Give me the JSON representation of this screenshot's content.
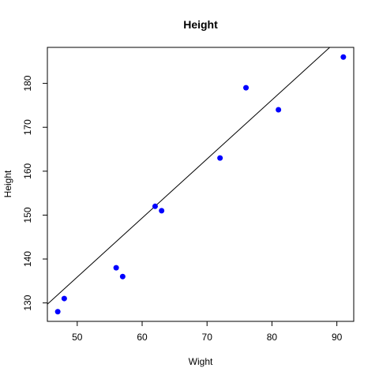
{
  "chart_data": {
    "type": "scatter",
    "title": "Height",
    "xlabel": "Wight",
    "ylabel": "Height",
    "xlim": [
      45.4,
      92.6
    ],
    "ylim": [
      125.8,
      188.2
    ],
    "x_ticks": [
      50,
      60,
      70,
      80,
      90
    ],
    "y_ticks": [
      130,
      140,
      150,
      160,
      170,
      180
    ],
    "grid": false,
    "point_color": "#0000ff",
    "line_color": "#000000",
    "points": [
      {
        "x": 47,
        "y": 128
      },
      {
        "x": 48,
        "y": 131
      },
      {
        "x": 56,
        "y": 138
      },
      {
        "x": 57,
        "y": 136
      },
      {
        "x": 62,
        "y": 152
      },
      {
        "x": 63,
        "y": 151
      },
      {
        "x": 72,
        "y": 163
      },
      {
        "x": 76,
        "y": 179
      },
      {
        "x": 81,
        "y": 174
      },
      {
        "x": 91,
        "y": 186
      }
    ],
    "regression_line": {
      "slope": 1.3446,
      "intercept": 68.66
    }
  }
}
